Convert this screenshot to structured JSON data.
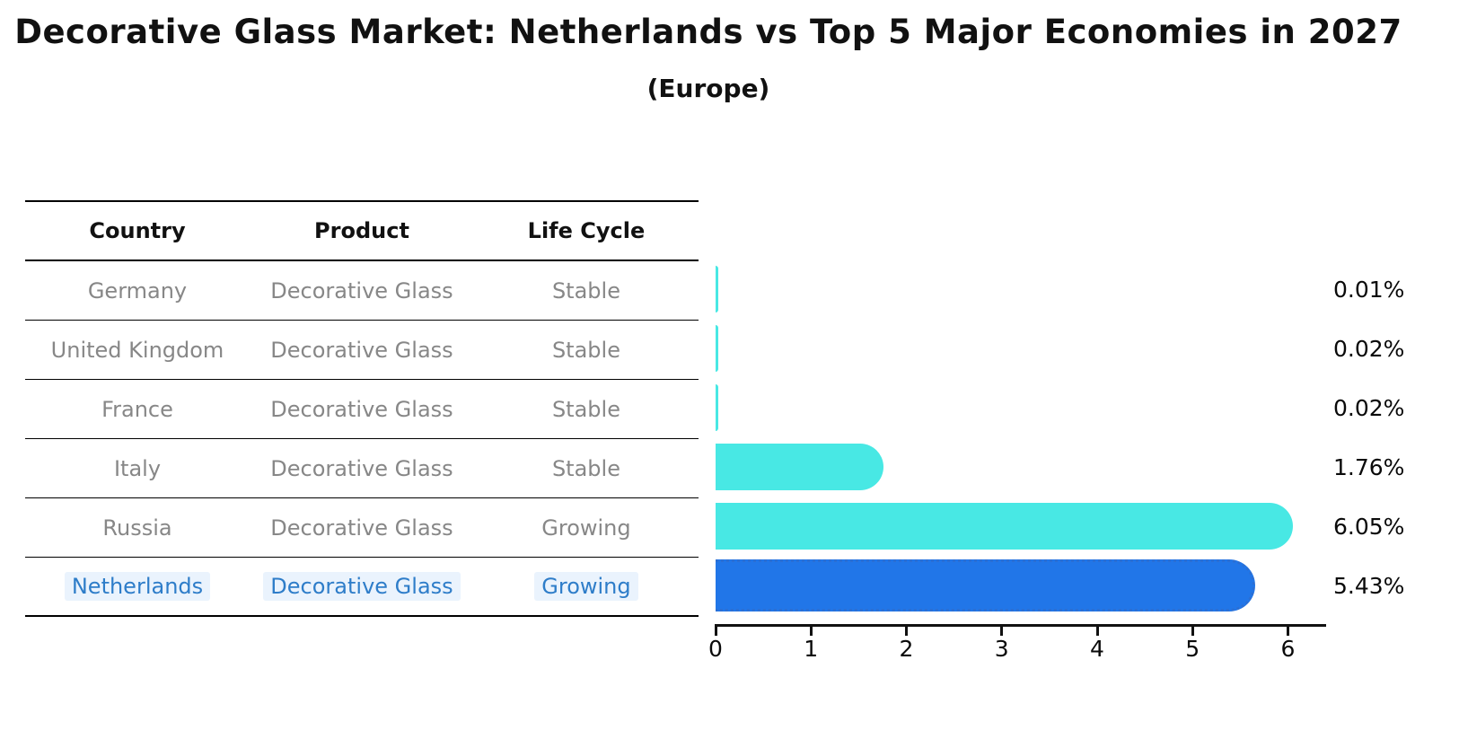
{
  "title": "Decorative Glass Market: Netherlands vs Top 5 Major Economies in 2027",
  "subtitle": "(Europe)",
  "table": {
    "headers": [
      "Country",
      "Product",
      "Life Cycle"
    ],
    "rows": [
      {
        "country": "Germany",
        "product": "Decorative Glass",
        "life_cycle": "Stable",
        "highlight": false
      },
      {
        "country": "United Kingdom",
        "product": "Decorative Glass",
        "life_cycle": "Stable",
        "highlight": false
      },
      {
        "country": "France",
        "product": "Decorative Glass",
        "life_cycle": "Stable",
        "highlight": false
      },
      {
        "country": "Italy",
        "product": "Decorative Glass",
        "life_cycle": "Stable",
        "highlight": false
      },
      {
        "country": "Russia",
        "product": "Decorative Glass",
        "life_cycle": "Growing",
        "highlight": false
      },
      {
        "country": "Netherlands",
        "product": "Decorative Glass",
        "life_cycle": "Growing",
        "highlight": true
      }
    ]
  },
  "chart_data": {
    "type": "bar",
    "orientation": "horizontal",
    "title": "Decorative Glass Market: Netherlands vs Top 5 Major Economies in 2027",
    "subtitle": "(Europe)",
    "categories": [
      "Germany",
      "United Kingdom",
      "France",
      "Italy",
      "Russia",
      "Netherlands"
    ],
    "values": [
      0.01,
      0.02,
      0.02,
      1.76,
      6.05,
      5.43
    ],
    "value_labels": [
      "0.01%",
      "0.02%",
      "0.02%",
      "1.76%",
      "6.05%",
      "5.43%"
    ],
    "x_ticks": [
      "0",
      "1",
      "2",
      "3",
      "4",
      "5",
      "6"
    ],
    "xlim": [
      0,
      6.4
    ],
    "grid": false,
    "legend": false,
    "highlight_index": 5
  },
  "colors": {
    "bar": "#48e8e4",
    "highlight_bar": "#2176e8",
    "highlight_bar_dots": "#2b6fd4",
    "highlight_text": "#2e7dc9",
    "table_text": "#878787",
    "axis": "#111111"
  }
}
